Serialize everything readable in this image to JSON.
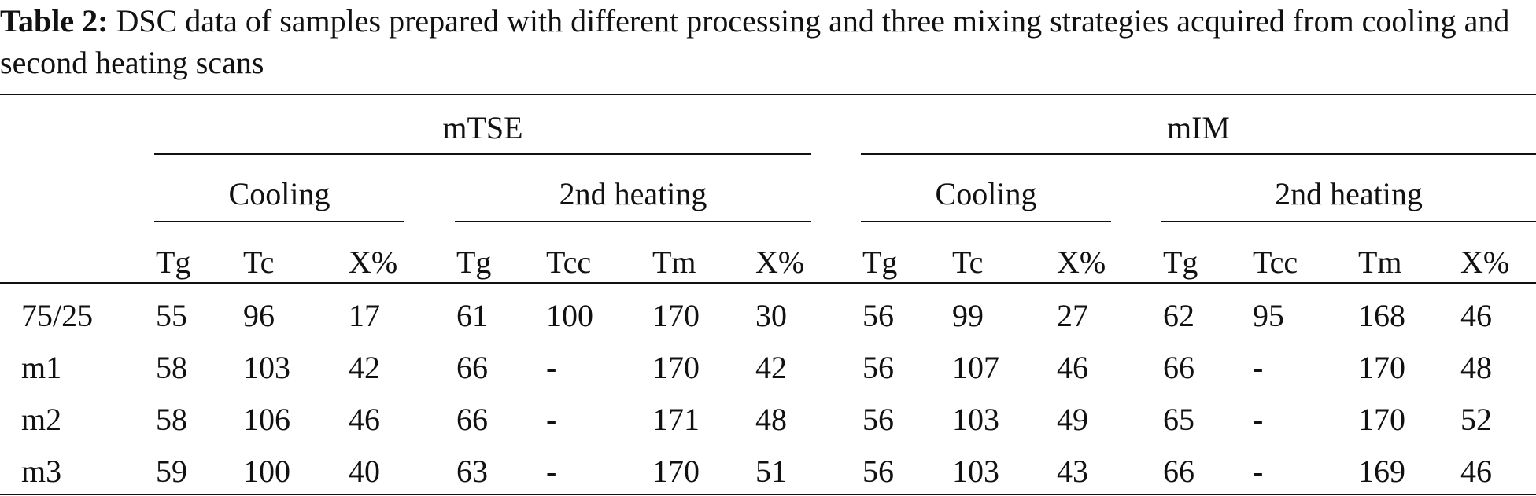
{
  "caption": {
    "label": "Table 2:",
    "text": "DSC data of samples prepared with different processing and three mixing strategies acquired from cooling and second heating scans"
  },
  "groups": [
    "mTSE",
    "mIM"
  ],
  "subgroups": [
    "Cooling",
    "2nd heating",
    "Cooling",
    "2nd heating"
  ],
  "columns": [
    "Tg",
    "Tc",
    "X%",
    "Tg",
    "Tcc",
    "Tm",
    "X%",
    "Tg",
    "Tc",
    "X%",
    "Tg",
    "Tcc",
    "Tm",
    "X%"
  ],
  "rows": [
    {
      "label": "75/25",
      "values": [
        "55",
        "96",
        "17",
        "61",
        "100",
        "170",
        "30",
        "56",
        "99",
        "27",
        "62",
        "95",
        "168",
        "46"
      ]
    },
    {
      "label": "m1",
      "values": [
        "58",
        "103",
        "42",
        "66",
        "-",
        "170",
        "42",
        "56",
        "107",
        "46",
        "66",
        "-",
        "170",
        "48"
      ]
    },
    {
      "label": "m2",
      "values": [
        "58",
        "106",
        "46",
        "66",
        "-",
        "171",
        "48",
        "56",
        "103",
        "49",
        "65",
        "-",
        "170",
        "52"
      ]
    },
    {
      "label": "m3",
      "values": [
        "59",
        "100",
        "40",
        "63",
        "-",
        "170",
        "51",
        "56",
        "103",
        "43",
        "66",
        "-",
        "169",
        "46"
      ]
    }
  ]
}
